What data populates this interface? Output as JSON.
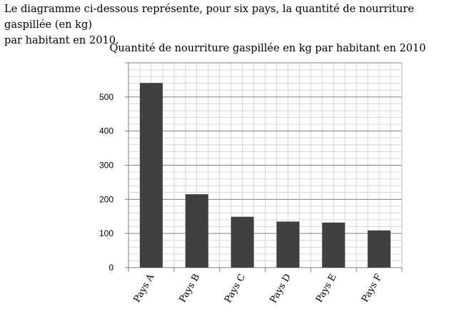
{
  "intro": {
    "line1": "Le diagramme ci-dessous représente, pour six pays, la quantité de nourriture gaspillée (en kg)",
    "line2": "par habitant en 2010."
  },
  "chart_data": {
    "type": "bar",
    "title": "Quantité de nourriture gaspillée en kg par habitant en 2010",
    "xlabel": "",
    "ylabel": "",
    "categories": [
      "Pays A",
      "Pays B",
      "Pays C",
      "Pays D",
      "Pays E",
      "Pays F"
    ],
    "values": [
      541,
      215,
      149,
      135,
      132,
      109
    ],
    "ylim": [
      0,
      600
    ],
    "yticks": [
      "0",
      "100",
      "200",
      "300",
      "400",
      "500"
    ],
    "bar_color": "#404040",
    "grid": true,
    "legend": "none"
  }
}
